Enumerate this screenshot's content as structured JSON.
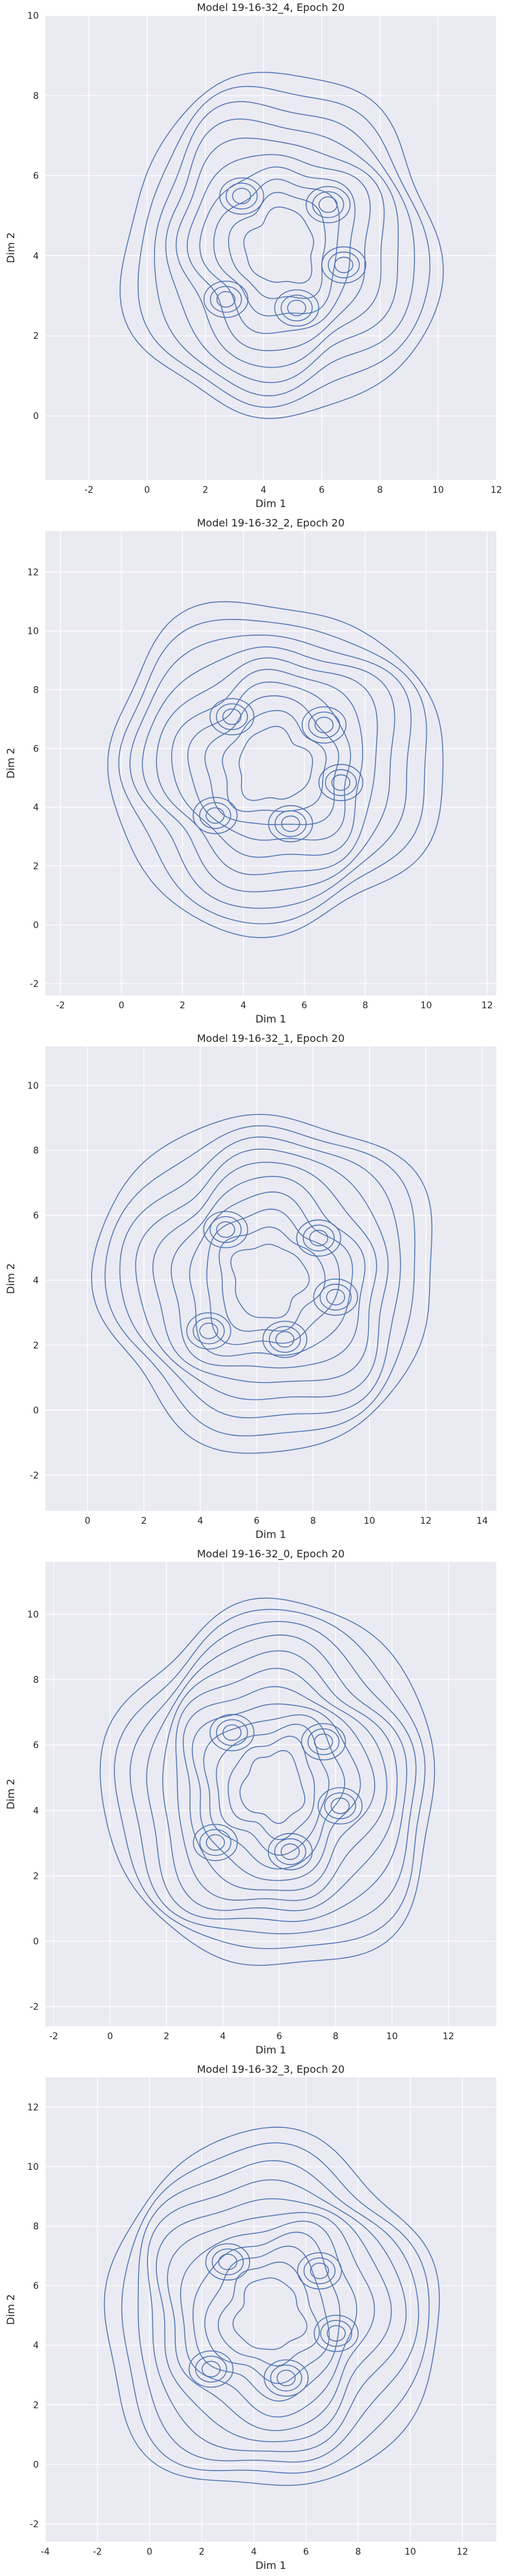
{
  "chart_data": [
    {
      "type": "kde_contour",
      "title": "Model 19-16-32_4, Epoch 20",
      "xlabel": "Dim 1",
      "ylabel": "Dim 2",
      "xlim": [
        -3.5,
        12
      ],
      "ylim": [
        -1.6,
        10
      ],
      "xticks": [
        -2,
        0,
        2,
        4,
        6,
        8,
        10,
        12
      ],
      "yticks": [
        0,
        2,
        4,
        6,
        8,
        10
      ],
      "grid": true,
      "center": [
        4.6,
        4.2
      ],
      "radii": [
        5.4,
        4.3
      ],
      "levels": 10,
      "line_color": "#4c72b0",
      "background": "#eaeaf2"
    },
    {
      "type": "kde_contour",
      "title": "Model 19-16-32_2, Epoch 20",
      "xlabel": "Dim 1",
      "ylabel": "Dim 2",
      "xlim": [
        -2.5,
        12.3
      ],
      "ylim": [
        -2.4,
        13.4
      ],
      "xticks": [
        -2,
        0,
        2,
        4,
        6,
        8,
        10,
        12
      ],
      "yticks": [
        -2,
        0,
        2,
        4,
        6,
        8,
        10,
        12
      ],
      "grid": true,
      "center": [
        5.0,
        5.4
      ],
      "radii": [
        5.5,
        5.6
      ],
      "levels": 10,
      "line_color": "#4c72b0",
      "background": "#eaeaf2"
    },
    {
      "type": "kde_contour",
      "title": "Model 19-16-32_1, Epoch 20",
      "xlabel": "Dim 1",
      "ylabel": "Dim 2",
      "xlim": [
        -1.5,
        14.5
      ],
      "ylim": [
        -3.1,
        11.2
      ],
      "xticks": [
        0,
        2,
        4,
        6,
        8,
        10,
        12,
        14
      ],
      "yticks": [
        -2,
        0,
        2,
        4,
        6,
        8,
        10
      ],
      "grid": true,
      "center": [
        6.4,
        4.0
      ],
      "radii": [
        6.0,
        5.2
      ],
      "levels": 10,
      "line_color": "#4c72b0",
      "background": "#eaeaf2"
    },
    {
      "type": "kde_contour",
      "title": "Model 19-16-32_0, Epoch 20",
      "xlabel": "Dim 1",
      "ylabel": "Dim 2",
      "xlim": [
        -2.3,
        13.7
      ],
      "ylim": [
        -2.6,
        11.6
      ],
      "xticks": [
        -2,
        0,
        2,
        4,
        6,
        8,
        10,
        12
      ],
      "yticks": [
        -2,
        0,
        2,
        4,
        6,
        8,
        10
      ],
      "grid": true,
      "center": [
        5.8,
        4.7
      ],
      "radii": [
        5.9,
        5.6
      ],
      "levels": 12,
      "line_color": "#4c72b0",
      "background": "#eaeaf2"
    },
    {
      "type": "kde_contour",
      "title": "Model 19-16-32_3, Epoch 20",
      "xlabel": "Dim 1",
      "ylabel": "Dim 2",
      "xlim": [
        -4,
        13.3
      ],
      "ylim": [
        -2.6,
        13.0
      ],
      "xticks": [
        -4,
        -2,
        0,
        2,
        4,
        6,
        8,
        10,
        12
      ],
      "yticks": [
        -2,
        0,
        2,
        4,
        6,
        8,
        10,
        12
      ],
      "grid": true,
      "center": [
        4.6,
        5.0
      ],
      "radii": [
        6.4,
        6.0
      ],
      "levels": 11,
      "line_color": "#4c72b0",
      "background": "#eaeaf2"
    }
  ]
}
